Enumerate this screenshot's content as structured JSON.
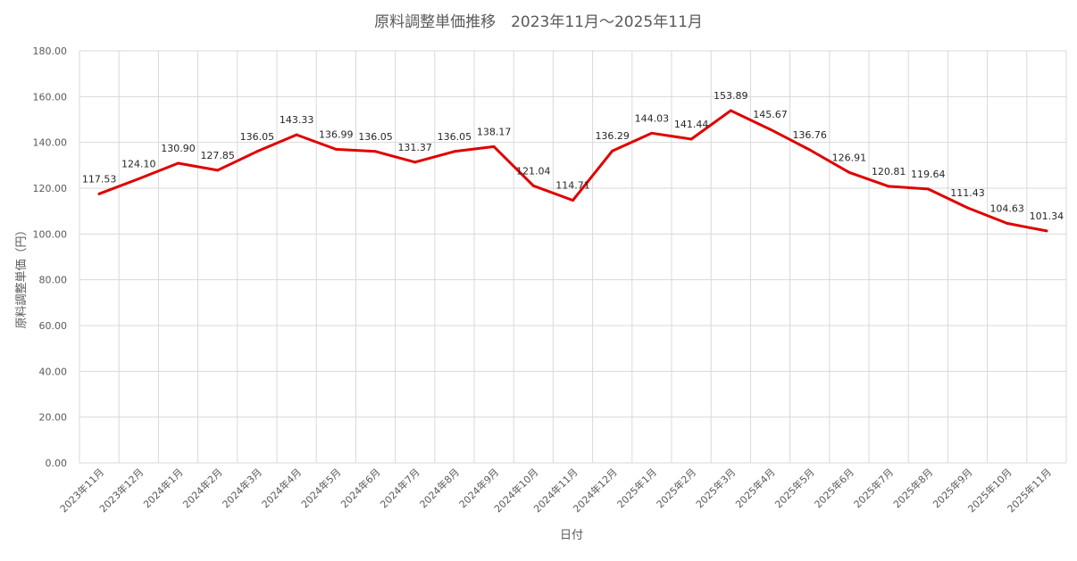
{
  "chart_data": {
    "type": "line",
    "title": "原料調整単価推移　2023年11月～2025年11月",
    "xlabel": "日付",
    "ylabel": "原料調整単価（円）",
    "ylim": [
      0,
      180
    ],
    "ytick_step": 20,
    "ytick_labels": [
      "0.00",
      "20.00",
      "40.00",
      "60.00",
      "80.00",
      "100.00",
      "120.00",
      "140.00",
      "160.00",
      "180.00"
    ],
    "grid": true,
    "legend": "none",
    "categories": [
      "2023年11月",
      "2023年12月",
      "2024年1月",
      "2024年2月",
      "2024年3月",
      "2024年4月",
      "2024年5月",
      "2024年6月",
      "2024年7月",
      "2024年8月",
      "2024年9月",
      "2024年10月",
      "2024年11月",
      "2024年12月",
      "2025年1月",
      "2025年2月",
      "2025年3月",
      "2025年4月",
      "2025年5月",
      "2025年6月",
      "2025年7月",
      "2025年8月",
      "2025年9月",
      "2025年10月",
      "2025年11月"
    ],
    "series": [
      {
        "values": [
          117.53,
          124.1,
          130.9,
          127.85,
          136.05,
          143.33,
          136.99,
          136.05,
          131.37,
          136.05,
          138.17,
          121.04,
          114.71,
          136.29,
          144.03,
          141.44,
          153.89,
          145.67,
          136.76,
          126.91,
          120.81,
          119.64,
          111.43,
          104.63,
          101.34
        ],
        "labels": [
          "117.53",
          "124.10",
          "130.90",
          "127.85",
          "136.05",
          "143.33",
          "136.99",
          "136.05",
          "131.37",
          "136.05",
          "138.17",
          "121.04",
          "114.71",
          "136.29",
          "144.03",
          "141.44",
          "153.89",
          "145.67",
          "136.76",
          "126.91",
          "120.81",
          "119.64",
          "111.43",
          "104.63",
          "101.34"
        ],
        "color": "#e00000"
      }
    ],
    "colors": {
      "line": "#e00000",
      "grid": "#d9d9d9",
      "text": "#595959",
      "labels": "#262626"
    }
  }
}
